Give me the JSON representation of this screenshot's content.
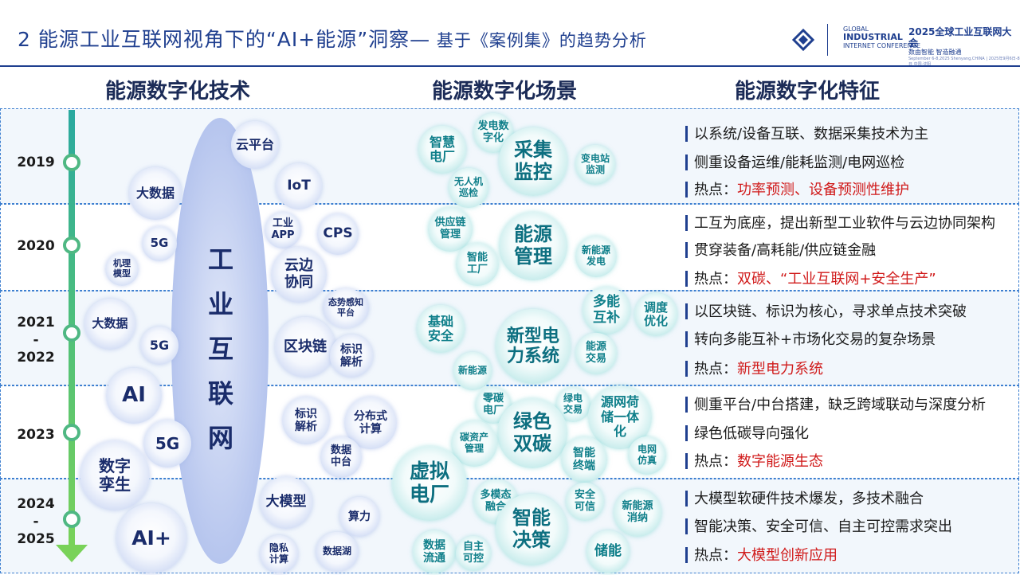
{
  "title": {
    "main": "2 能源工业互联网视角下的“AI+能源”洞察—",
    "sub": " 基于《案例集》的趋势分析"
  },
  "logo": {
    "gic_line1": "GLOBAL",
    "gic_line2": "INDUSTRIAL",
    "gic_line3": "INTERNET CONFERENCE",
    "conf_title": "2025全球工业互联网大会",
    "conf_sub": "数由智能 智造融通",
    "conf_date": "September 6-8,2025 Shenyang,CHINA | 2025年9月6日-8日 中国·沈阳"
  },
  "columns": {
    "tech": "能源数字化技术",
    "scene": "能源数字化场景",
    "feature": "能源数字化特征"
  },
  "timeline": [
    "2019",
    "2020",
    "2021\n-\n2022",
    "2023",
    "2024\n-\n2025"
  ],
  "platform_label": "工\n业\n互\n联\n网",
  "tech_bubbles": [
    "云平台",
    "IoT",
    "大数据",
    "工业\nAPP",
    "CPS",
    "5G",
    "机理\n模型",
    "云边\n协同",
    "态势感知\n平台",
    "大数据",
    "5G",
    "区块链",
    "标识\n解析",
    "AI",
    "标识\n解析",
    "分布式\n计算",
    "5G",
    "数据\n中台",
    "数字\n孪生",
    "大模型",
    "算力",
    "AI+",
    "隐私\n计算",
    "数据湖"
  ],
  "scene_bubbles": [
    "智慧\n电厂",
    "发电数\n字化",
    "采集\n监控",
    "变电站\n监测",
    "无人机\n巡检",
    "供应链\n管理",
    "能源\n管理",
    "新能源\n发电",
    "智能\n工厂",
    "多能\n互补",
    "调度\n优化",
    "基础\n安全",
    "新型电\n力系统",
    "能源\n交易",
    "新能源",
    "零碳\n电厂",
    "绿电\n交易",
    "源网荷\n储一体\n化",
    "绿色\n双碳",
    "碳资产\n管理",
    "智能\n终端",
    "电网\n仿真",
    "虚拟\n电厂",
    "多模态\n融合",
    "安全\n可信",
    "智能\n决策",
    "新能源\n消纳",
    "数据\n流通",
    "自主\n可控",
    "储能"
  ],
  "features": [
    [
      "以系统/设备互联、数据采集技术为主",
      "侧重设备运维/能耗监测/电网巡检",
      {
        "prefix": "热点：",
        "hot": "功率预测、设备预测性维护"
      }
    ],
    [
      "工互为底座，提出新型工业软件与云边协同架构",
      "贯穿装备/高耗能/供应链金融",
      {
        "prefix": "热点：",
        "hot": "双碳、“工业互联网+安全生产”"
      }
    ],
    [
      "以区块链、标识为核心，寻求单点技术突破",
      "转向多能互补+市场化交易的复杂场景",
      {
        "prefix": "热点：",
        "hot": "新型电力系统"
      }
    ],
    [
      "侧重平台/中台搭建，缺乏跨域联动与深度分析",
      "绿色低碳导向强化",
      {
        "prefix": "热点：",
        "hot": "数字能源生态"
      }
    ],
    [
      "大模型软硬件技术爆发，多技术融合",
      "智能决策、安全可信、自主可控需求突出",
      {
        "prefix": "热点：",
        "hot": "大模型创新应用"
      }
    ]
  ],
  "colors": {
    "primary": "#1f3f8f",
    "hot": "#d01a1a",
    "teal": "#0f7f8a"
  }
}
